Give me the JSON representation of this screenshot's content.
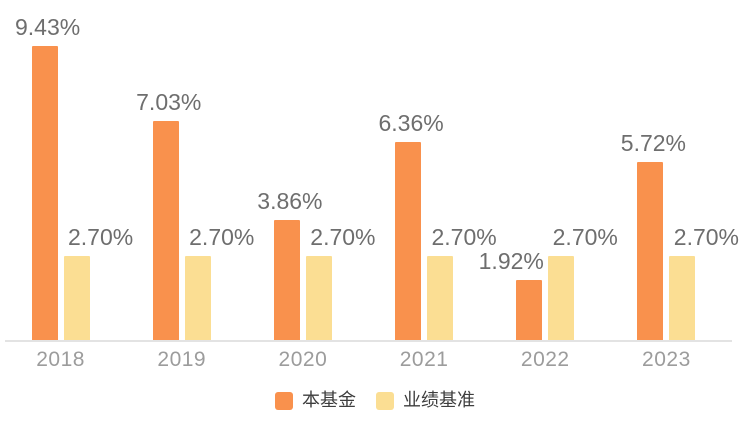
{
  "chart_data": {
    "type": "bar",
    "title": "",
    "xlabel": "",
    "ylabel": "",
    "categories": [
      "2018",
      "2019",
      "2020",
      "2021",
      "2022",
      "2023"
    ],
    "series": [
      {
        "name": "本基金",
        "color": "#F9914D",
        "values": [
          9.43,
          7.03,
          3.86,
          6.36,
          1.92,
          5.72
        ]
      },
      {
        "name": "业绩基准",
        "color": "#FBDE93",
        "values": [
          2.7,
          2.7,
          2.7,
          2.7,
          2.7,
          2.7
        ]
      }
    ],
    "value_labels": [
      [
        "9.43%",
        "7.03%",
        "3.86%",
        "6.36%",
        "1.92%",
        "5.72%"
      ],
      [
        "2.70%",
        "2.70%",
        "2.70%",
        "2.70%",
        "2.70%",
        "2.70%"
      ]
    ],
    "ylim": [
      0,
      10.9
    ],
    "grid": false,
    "legend_position": "bottom",
    "legend_labels": [
      "本基金",
      "业绩基准"
    ]
  },
  "colors": {
    "fund_bar": "#F9914D",
    "benchmark_bar": "#FBDE93",
    "value_label_text": "#6E6E6E",
    "axis_label_text": "#9C9C9C",
    "legend_text": "#3E3E3E",
    "axis_line": "#E3E3E3",
    "background": "#FFFFFF"
  }
}
